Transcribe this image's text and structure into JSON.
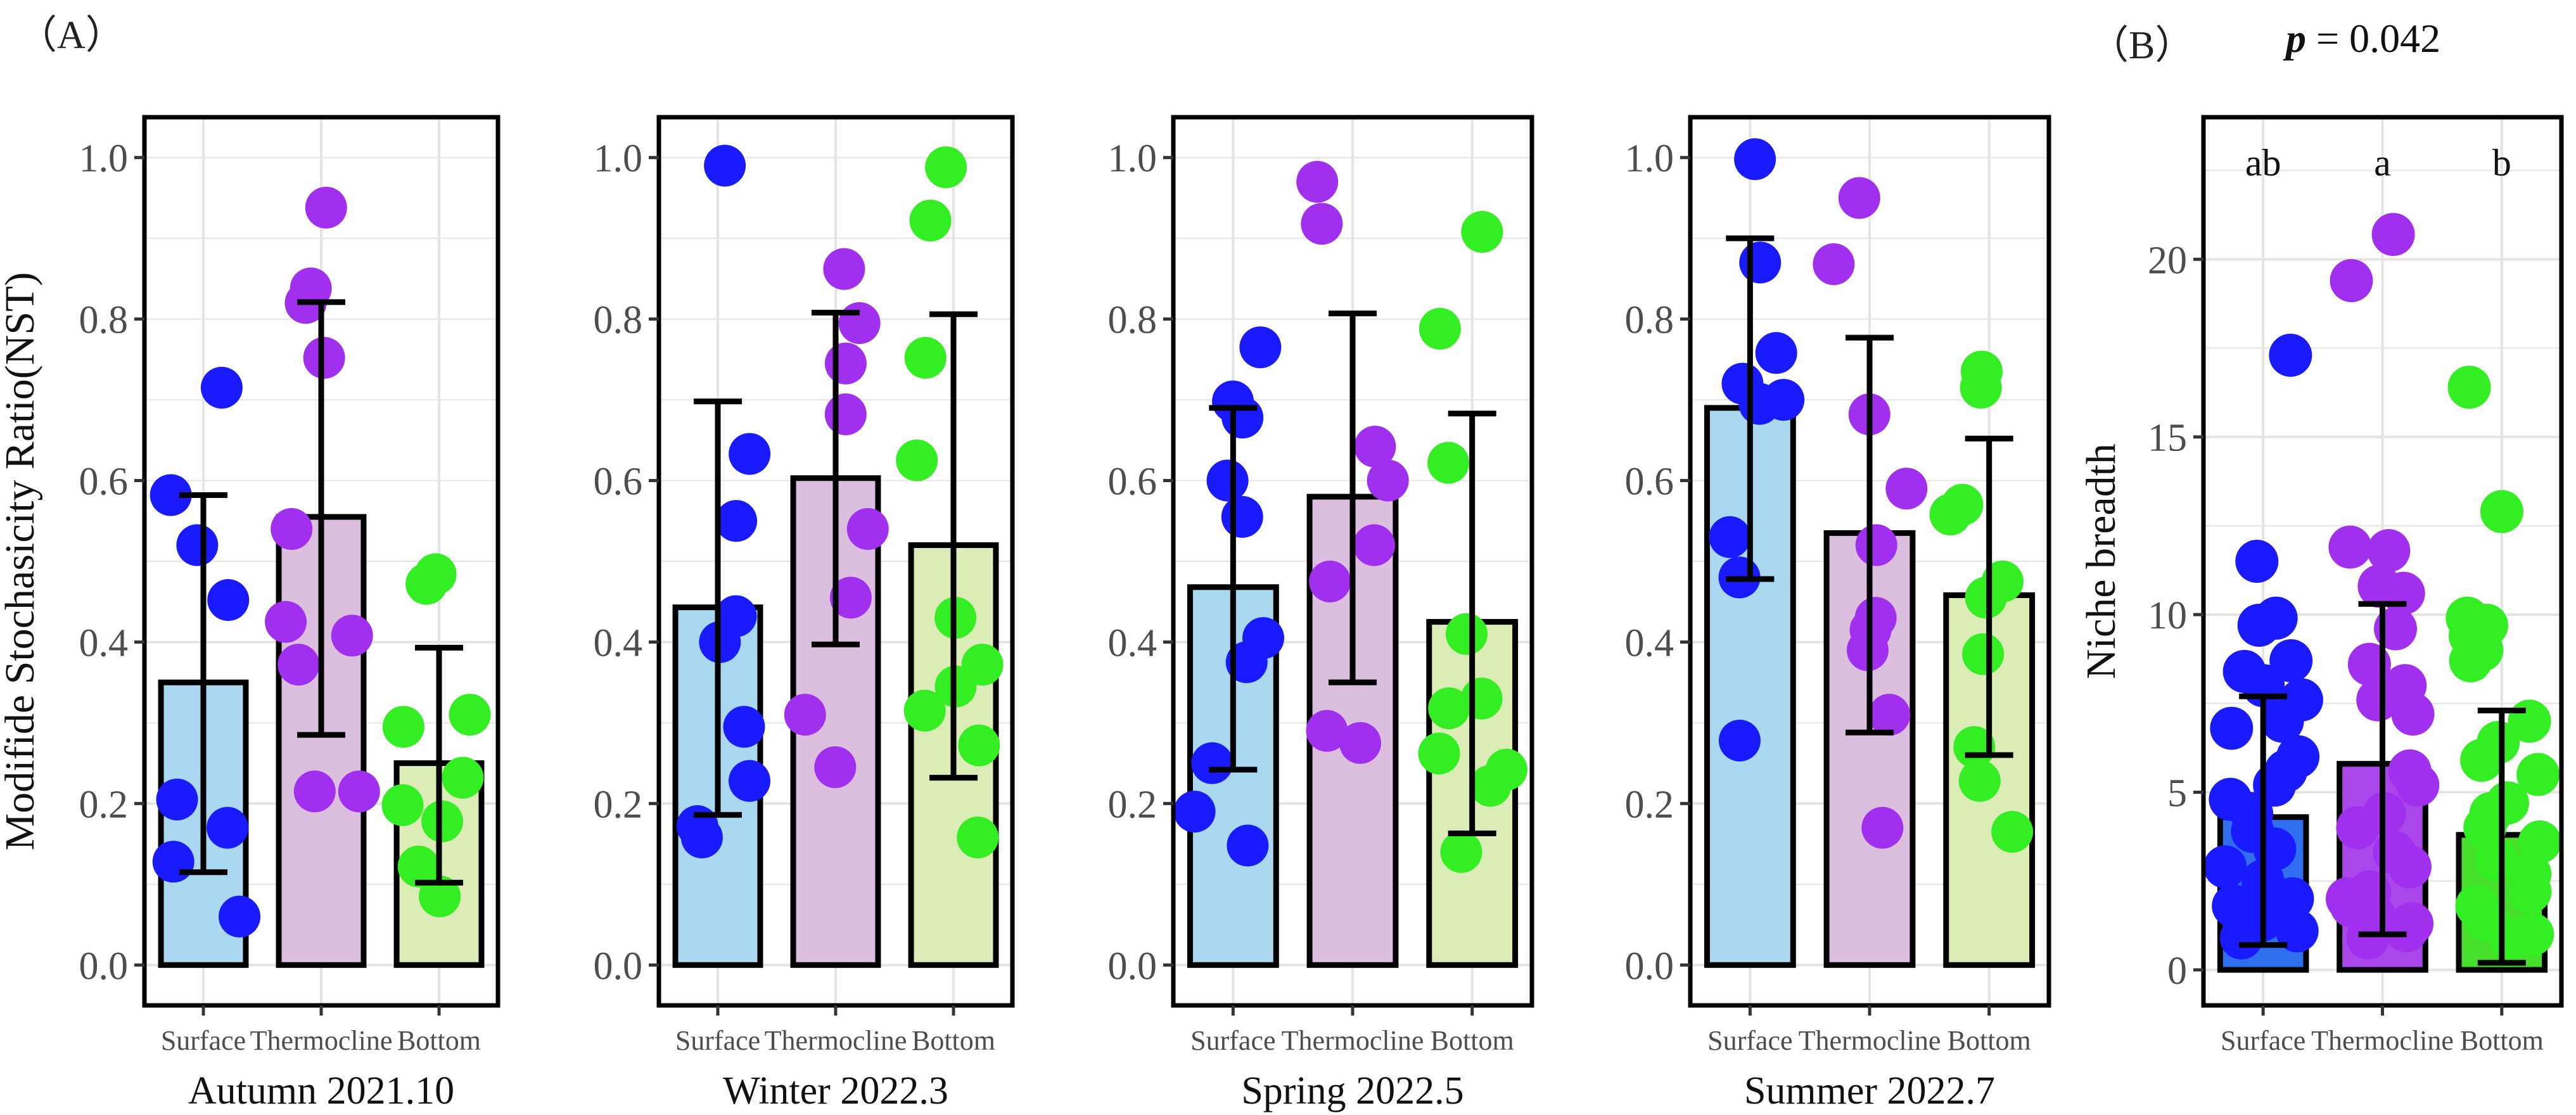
{
  "figure": {
    "label_a": "（A）",
    "label_b": "（B）",
    "p_symbol": "p",
    "p_rest": " = 0.042"
  },
  "colors": {
    "surface_point": "#1a1aff",
    "thermocline_point": "#a030ee",
    "bottom_point": "#33ee22",
    "surface_bar_a": "#a9d8f0",
    "thermocline_bar_a": "#dcbede",
    "bottom_bar_a": "#dcecb6",
    "surface_bar_b": "#2f6fef",
    "thermocline_bar_b": "#a947ea",
    "bottom_bar_b": "#45df2c",
    "grid": "#e4e4e4",
    "axis_text": "#4d4d4d"
  },
  "chart_data": [
    {
      "type": "bar",
      "panel": "A",
      "title": "Autumn 2021.10",
      "ylabel": "Modifide Stochasicity Ratio(NST)",
      "ylim": [
        -0.05,
        1.05
      ],
      "yticks": [
        0.0,
        0.2,
        0.4,
        0.6,
        0.8,
        1.0
      ],
      "ytick_labels": [
        "0.0",
        "0.2",
        "0.4",
        "0.6",
        "0.8",
        "1.0"
      ],
      "categories": [
        "Surface",
        "Thermocline",
        "Bottom"
      ],
      "means": [
        0.35,
        0.555,
        0.25
      ],
      "err_low": [
        0.115,
        0.285,
        0.102
      ],
      "err_high": [
        0.582,
        0.821,
        0.393
      ],
      "points": [
        [
          0.715,
          0.582,
          0.52,
          0.452,
          0.205,
          0.17,
          0.128,
          0.06
        ],
        [
          0.938,
          0.838,
          0.82,
          0.752,
          0.54,
          0.425,
          0.408,
          0.372,
          0.215,
          0.215
        ],
        [
          0.484,
          0.472,
          0.31,
          0.295,
          0.232,
          0.198,
          0.178,
          0.122,
          0.085
        ]
      ]
    },
    {
      "type": "bar",
      "panel": "A",
      "title": "Winter 2022.3",
      "ylim": [
        -0.05,
        1.05
      ],
      "yticks": [
        0.0,
        0.2,
        0.4,
        0.6,
        0.8,
        1.0
      ],
      "ytick_labels": [
        "0.0",
        "0.2",
        "0.4",
        "0.6",
        "0.8",
        "1.0"
      ],
      "categories": [
        "Surface",
        "Thermocline",
        "Bottom"
      ],
      "means": [
        0.443,
        0.603,
        0.52
      ],
      "err_low": [
        0.186,
        0.397,
        0.232
      ],
      "err_high": [
        0.698,
        0.808,
        0.806
      ],
      "points": [
        [
          0.99,
          0.633,
          0.55,
          0.432,
          0.4,
          0.295,
          0.228,
          0.172,
          0.158
        ],
        [
          0.862,
          0.795,
          0.745,
          0.682,
          0.54,
          0.455,
          0.31,
          0.245
        ],
        [
          0.988,
          0.922,
          0.752,
          0.625,
          0.43,
          0.372,
          0.345,
          0.315,
          0.272,
          0.158
        ]
      ]
    },
    {
      "type": "bar",
      "panel": "A",
      "title": "Spring 2022.5",
      "ylim": [
        -0.05,
        1.05
      ],
      "yticks": [
        0.0,
        0.2,
        0.4,
        0.6,
        0.8,
        1.0
      ],
      "ytick_labels": [
        "0.0",
        "0.2",
        "0.4",
        "0.6",
        "0.8",
        "1.0"
      ],
      "categories": [
        "Surface",
        "Thermocline",
        "Bottom"
      ],
      "means": [
        0.468,
        0.58,
        0.425
      ],
      "err_low": [
        0.242,
        0.35,
        0.163
      ],
      "err_high": [
        0.69,
        0.807,
        0.683
      ],
      "points": [
        [
          0.765,
          0.698,
          0.678,
          0.6,
          0.555,
          0.405,
          0.375,
          0.25,
          0.19,
          0.148
        ],
        [
          0.97,
          0.918,
          0.642,
          0.6,
          0.52,
          0.475,
          0.29,
          0.275
        ],
        [
          0.908,
          0.788,
          0.622,
          0.41,
          0.33,
          0.318,
          0.262,
          0.242,
          0.222,
          0.14
        ]
      ]
    },
    {
      "type": "bar",
      "panel": "A",
      "title": "Summer 2022.7",
      "ylim": [
        -0.05,
        1.05
      ],
      "yticks": [
        0.0,
        0.2,
        0.4,
        0.6,
        0.8,
        1.0
      ],
      "ytick_labels": [
        "0.0",
        "0.2",
        "0.4",
        "0.6",
        "0.8",
        "1.0"
      ],
      "categories": [
        "Surface",
        "Thermocline",
        "Bottom"
      ],
      "means": [
        0.69,
        0.535,
        0.458
      ],
      "err_low": [
        0.478,
        0.288,
        0.26
      ],
      "err_high": [
        0.9,
        0.777,
        0.652
      ],
      "points": [
        [
          0.998,
          0.87,
          0.758,
          0.72,
          0.7,
          0.695,
          0.53,
          0.48,
          0.278
        ],
        [
          0.95,
          0.868,
          0.682,
          0.59,
          0.52,
          0.43,
          0.415,
          0.39,
          0.31,
          0.17
        ],
        [
          0.735,
          0.715,
          0.57,
          0.558,
          0.475,
          0.455,
          0.385,
          0.27,
          0.228,
          0.165
        ]
      ]
    },
    {
      "type": "bar",
      "panel": "B",
      "title": "",
      "ylabel": "Niche breadth",
      "ylim": [
        -1.0,
        24.0
      ],
      "yticks": [
        0,
        5,
        10,
        15,
        20
      ],
      "ytick_labels": [
        "0",
        "5",
        "10",
        "15",
        "20"
      ],
      "categories": [
        "Surface",
        "Thermocline",
        "Bottom"
      ],
      "means": [
        4.3,
        5.8,
        3.8
      ],
      "err_low": [
        0.7,
        1.0,
        0.2
      ],
      "err_high": [
        7.7,
        10.3,
        7.3
      ],
      "significance_letters": [
        "ab",
        "a",
        "b"
      ],
      "points": [
        [
          17.3,
          11.5,
          9.9,
          9.7,
          8.7,
          8.4,
          8.0,
          7.6,
          7.0,
          6.8,
          6.0,
          5.6,
          5.2,
          4.8,
          4.4,
          3.9,
          3.4,
          2.9,
          2.5,
          2.0,
          1.8,
          1.4,
          1.1,
          0.9
        ],
        [
          20.7,
          19.4,
          11.9,
          11.8,
          10.8,
          10.6,
          9.6,
          8.6,
          8.0,
          7.6,
          7.2,
          5.6,
          5.2,
          4.4,
          4.0,
          3.3,
          2.9,
          2.2,
          2.0,
          1.8,
          1.5,
          1.3,
          1.1,
          0.9
        ],
        [
          16.4,
          12.9,
          9.9,
          9.7,
          9.4,
          9.0,
          8.7,
          7.0,
          6.4,
          5.9,
          5.5,
          4.7,
          4.4,
          4.0,
          3.6,
          3.1,
          2.7,
          2.2,
          1.8,
          1.4,
          1.0,
          0.9
        ]
      ]
    }
  ]
}
